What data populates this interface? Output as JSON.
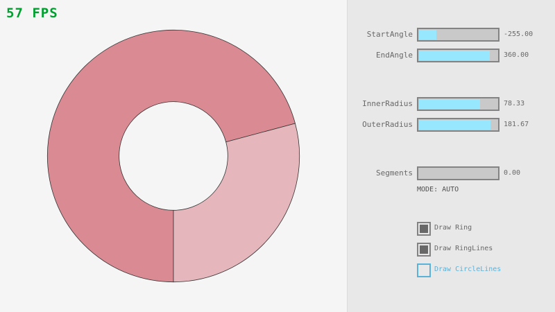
{
  "fps": "57 FPS",
  "ring": {
    "inner_radius": 78.33,
    "outer_radius": 181.67,
    "colors": {
      "overlap": "#da8a93",
      "single": "#e5b7bc",
      "outline": "#333333"
    }
  },
  "controls": {
    "sliders": [
      {
        "label": "StartAngle",
        "value": "-255.00",
        "fill": 0.217
      },
      {
        "label": "EndAngle",
        "value": "360.00",
        "fill": 0.9
      },
      {
        "label": "InnerRadius",
        "value": "78.33",
        "fill": 0.783
      },
      {
        "label": "OuterRadius",
        "value": "181.67",
        "fill": 0.908
      },
      {
        "label": "Segments",
        "value": "0.00",
        "fill": 0
      }
    ],
    "mode": "MODE: AUTO",
    "checkboxes": [
      {
        "label": "Draw Ring",
        "checked": true
      },
      {
        "label": "Draw RingLines",
        "checked": true
      },
      {
        "label": "Draw CircleLines",
        "checked": false
      }
    ],
    "accent": "#97e8ff"
  }
}
